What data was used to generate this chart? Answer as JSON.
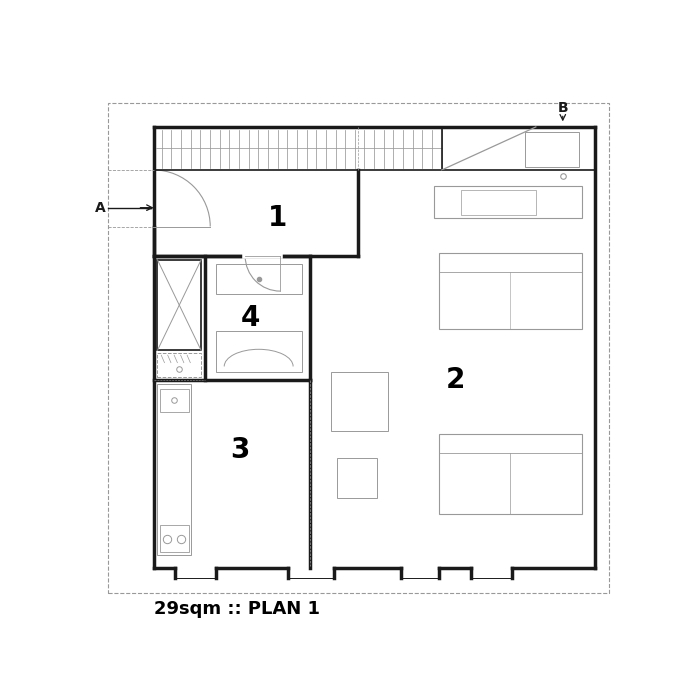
{
  "title": "29sqm :: PLAN 1",
  "title_fontsize": 13,
  "bg_color": "#ffffff",
  "wall_color": "#1a1a1a",
  "light_color": "#999999",
  "dashed_color": "#999999",
  "label_color": "#000000",
  "figsize": [
    6.99,
    6.99
  ],
  "dpi": 100
}
